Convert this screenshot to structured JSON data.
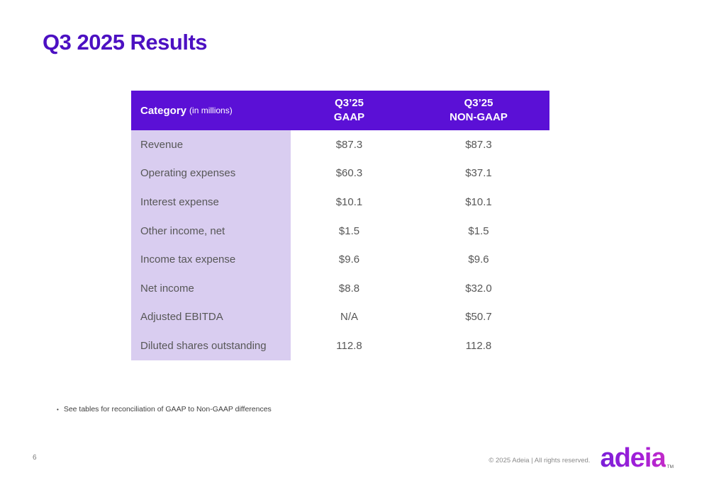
{
  "slide": {
    "title": "Q3 2025 Results",
    "page_number": "6",
    "footnote_bullet": "•",
    "footnote": "See tables for reconciliation of GAAP to Non-GAAP differences",
    "copyright": "© 2025 Adeia | All rights reserved.",
    "logo_text": "adeia",
    "logo_tm": "TM"
  },
  "colors": {
    "header_purple": "#5b10d6",
    "category_lavender": "#d9cdf0",
    "title_purple": "#4c10c2",
    "body_text_gray": "#575757",
    "logo_purple": "#a21fd8"
  },
  "table": {
    "header": {
      "category_label": "Category",
      "category_sublabel": "(in millions)",
      "gaap_line1": "Q3’25",
      "gaap_line2": "GAAP",
      "non_gaap_line1": "Q3’25",
      "non_gaap_line2": "NON-GAAP"
    },
    "rows": [
      {
        "label": "Revenue",
        "gaap": "$87.3",
        "non_gaap": "$87.3"
      },
      {
        "label": "Operating expenses",
        "gaap": "$60.3",
        "non_gaap": "$37.1"
      },
      {
        "label": "Interest expense",
        "gaap": "$10.1",
        "non_gaap": "$10.1"
      },
      {
        "label": "Other income, net",
        "gaap": "$1.5",
        "non_gaap": "$1.5"
      },
      {
        "label": "Income tax expense",
        "gaap": "$9.6",
        "non_gaap": "$9.6"
      },
      {
        "label": "Net income",
        "gaap": "$8.8",
        "non_gaap": "$32.0"
      },
      {
        "label": "Adjusted EBITDA",
        "gaap": "N/A",
        "non_gaap": "$50.7"
      },
      {
        "label": "Diluted shares outstanding",
        "gaap": "112.8",
        "non_gaap": "112.8"
      }
    ]
  }
}
